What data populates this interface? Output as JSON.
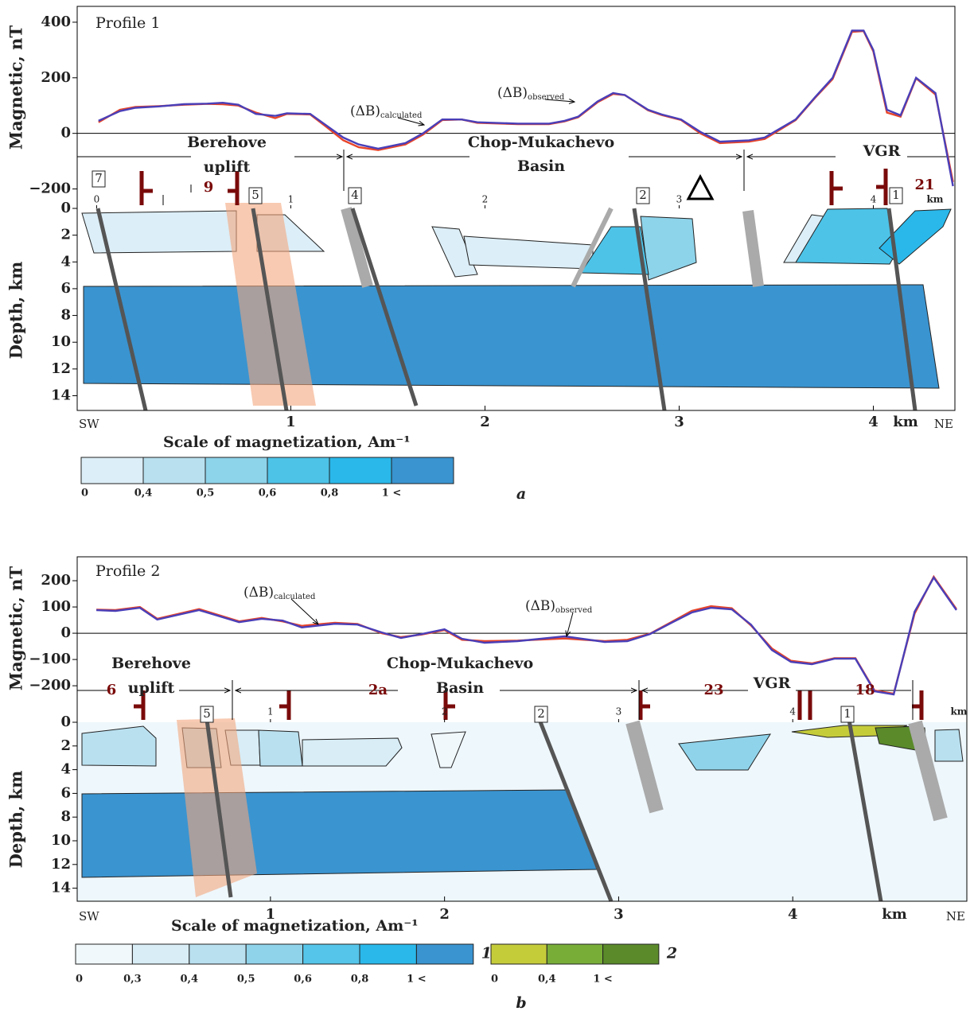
{
  "chart_data": [
    {
      "type": "line",
      "title": "Profile 1",
      "y_label": "Magnetic, nT",
      "x": [
        0.01,
        0.12,
        0.2,
        0.32,
        0.45,
        0.57,
        0.65,
        0.73,
        0.82,
        0.92,
        0.98,
        1.1,
        1.18,
        1.27,
        1.35,
        1.45,
        1.59,
        1.68,
        1.78,
        1.88,
        1.96,
        2.17,
        2.33,
        2.41,
        2.48,
        2.58,
        2.66,
        2.72,
        2.84,
        2.91,
        3.01,
        3.11,
        3.21,
        3.36,
        3.44,
        3.6,
        3.7,
        3.79,
        3.89,
        3.95,
        4.0,
        4.07,
        4.14,
        4.22,
        4.32,
        4.41
      ],
      "series": [
        {
          "label_main": "(ΔB)",
          "label_sub": "calculated",
          "color": "#e8452a",
          "values": [
            40,
            85,
            95,
            98,
            103,
            106,
            105,
            100,
            75,
            55,
            70,
            68,
            25,
            -25,
            -50,
            -60,
            -40,
            -5,
            48,
            50,
            38,
            33,
            33,
            43,
            58,
            112,
            142,
            138,
            83,
            66,
            48,
            0,
            -35,
            -30,
            -20,
            48,
            128,
            195,
            365,
            368,
            295,
            75,
            60,
            198,
            140,
            -175
          ]
        },
        {
          "label_main": "(ΔB)",
          "label_sub": "observed",
          "color": "#4a3fb8",
          "values": [
            45,
            80,
            92,
            97,
            105,
            107,
            110,
            103,
            70,
            63,
            72,
            70,
            30,
            -15,
            -40,
            -55,
            -35,
            0,
            50,
            50,
            40,
            35,
            35,
            45,
            60,
            115,
            145,
            138,
            85,
            68,
            50,
            5,
            -30,
            -25,
            -15,
            50,
            130,
            200,
            370,
            370,
            300,
            85,
            65,
            200,
            145,
            -190
          ]
        }
      ],
      "xlim": [
        -0.1,
        4.42
      ],
      "ylim": [
        -270,
        457
      ],
      "yticks": [
        {
          "value": -200,
          "label": "−200"
        },
        0,
        200,
        400
      ]
    },
    {
      "type": "section",
      "y_label": "Depth, km",
      "ylim": [
        0,
        15.1
      ],
      "yticks": [
        0,
        2,
        4,
        6,
        8,
        10,
        12,
        14
      ],
      "xlim": [
        -0.1,
        4.42
      ],
      "xticks": [
        1,
        2,
        3,
        4
      ],
      "x_unit": "km",
      "left_label": "SW",
      "right_label": "NE",
      "top_xticks": [
        0,
        1,
        2,
        3,
        4
      ],
      "top_x_unit": "km",
      "regions": [
        {
          "lines": [
            "Berehove",
            "uplift"
          ]
        },
        {
          "lines": [
            "Chop-Mukachevo",
            "Basin"
          ]
        },
        {
          "lines": [
            "VGR"
          ]
        }
      ],
      "block_labels": [
        "7",
        "5",
        "4",
        "2",
        "1"
      ],
      "unit_labels": [
        "9",
        "21"
      ],
      "caption": "a",
      "scale": {
        "title": "Scale of magnetization, Am⁻¹",
        "groups": [
          {
            "colors": [
              "#dceef7",
              "#b8e0ef",
              "#8dd3ea",
              "#4dc3e8",
              "#2ab8ea",
              "#3a94d0"
            ],
            "labels": [
              "0",
              "0,4",
              "0,5",
              "0,6",
              "0,8",
              "1 <"
            ]
          }
        ]
      }
    },
    {
      "type": "line",
      "title": "Profile 2",
      "y_label": "Magnetic, nT",
      "x": [
        0,
        0.11,
        0.25,
        0.35,
        0.59,
        0.82,
        0.95,
        1.07,
        1.18,
        1.37,
        1.5,
        1.64,
        1.75,
        1.87,
        2.0,
        2.1,
        2.23,
        2.42,
        2.69,
        2.92,
        3.05,
        3.18,
        3.31,
        3.42,
        3.53,
        3.65,
        3.76,
        3.88,
        3.99,
        4.11,
        4.24,
        4.36,
        4.47,
        4.58,
        4.7,
        4.81,
        4.94
      ],
      "series": [
        {
          "label_main": "(ΔB)",
          "label_sub": "calculated",
          "color": "#e8452a",
          "values": [
            90,
            88,
            100,
            55,
            92,
            45,
            58,
            45,
            28,
            40,
            35,
            0,
            -15,
            -5,
            12,
            -25,
            -30,
            -28,
            -20,
            -30,
            -25,
            -2,
            45,
            85,
            103,
            95,
            30,
            -58,
            -105,
            -115,
            -95,
            -95,
            -218,
            -230,
            75,
            215,
            92
          ]
        },
        {
          "label_main": "(ΔB)",
          "label_sub": "observed",
          "color": "#4a3fb8",
          "values": [
            88,
            85,
            97,
            52,
            88,
            42,
            55,
            48,
            22,
            36,
            33,
            3,
            -18,
            -3,
            15,
            -21,
            -36,
            -30,
            -12,
            -33,
            -30,
            -3,
            42,
            79,
            97,
            91,
            33,
            -64,
            -109,
            -118,
            -97,
            -97,
            -221,
            -233,
            82,
            212,
            88
          ]
        }
      ],
      "xlim": [
        -0.11,
        5.0
      ],
      "ylim": [
        -339,
        291
      ],
      "yticks": [
        {
          "value": -200,
          "label": "−200"
        },
        {
          "value": -100,
          "label": "−100"
        },
        0,
        100,
        200
      ]
    },
    {
      "type": "section",
      "y_label": "Depth, km",
      "ylim": [
        0,
        15.1
      ],
      "yticks": [
        0,
        2,
        4,
        6,
        8,
        10,
        12,
        14
      ],
      "xlim": [
        -0.11,
        5.0
      ],
      "xticks": [
        1,
        2,
        3,
        4
      ],
      "x_unit": "km",
      "left_label": "SW",
      "right_label": "NE",
      "top_xticks": [
        1,
        2,
        3,
        4
      ],
      "top_x_unit": "km",
      "regions": [
        {
          "lines": [
            "Berehove",
            "uplift"
          ]
        },
        {
          "lines": [
            "Chop-Mukachevo",
            "Basin"
          ]
        },
        {
          "lines": [
            "VGR"
          ]
        }
      ],
      "block_labels": [
        "5",
        "2",
        "1"
      ],
      "unit_labels": [
        "6",
        "2a",
        "23",
        "18"
      ],
      "caption": "b",
      "scale": {
        "title": "Scale of magnetization, Am⁻¹",
        "groups": [
          {
            "colors": [
              "#f0f8fc",
              "#d8edf6",
              "#b9e0ef",
              "#8fd3ea",
              "#55c5e9",
              "#2ab8ea",
              "#3a94d0"
            ],
            "labels": [
              "0",
              "0,3",
              "0,4",
              "0,5",
              "0,6",
              "0,8",
              "1 <"
            ],
            "number": "1"
          },
          {
            "colors": [
              "#c5cc3a",
              "#78ae38",
              "#5a8a2a"
            ],
            "labels": [
              "0",
              "0,4",
              "1 <"
            ],
            "number": "2"
          }
        ]
      }
    }
  ]
}
